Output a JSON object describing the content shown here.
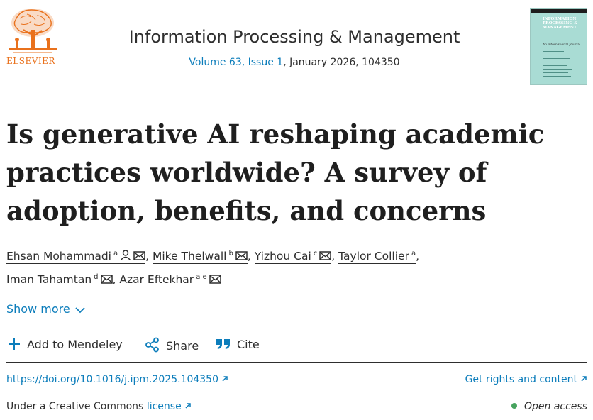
{
  "publisher": {
    "name": "ELSEVIER",
    "logo_icon": "elsevier-tree-logo"
  },
  "journal": {
    "title": "Information Processing & Management",
    "volume_issue": "Volume 63, Issue 1",
    "date_article": ", January 2026, 104350",
    "cover_title": "INFORMATION PROCESSING & MANAGEMENT",
    "cover_subtitle": "An International Journal"
  },
  "article": {
    "title": "Is generative AI reshaping academic practices worldwide? A survey of adoption, benefits, and concerns"
  },
  "authors": [
    {
      "name": "Ehsan Mohammadi",
      "aff": "a",
      "icons": [
        "person-icon",
        "mail-icon"
      ]
    },
    {
      "name": "Mike Thelwall",
      "aff": "b",
      "icons": [
        "mail-icon"
      ]
    },
    {
      "name": "Yizhou Cai",
      "aff": "c",
      "icons": [
        "mail-icon"
      ]
    },
    {
      "name": "Taylor Collier",
      "aff": "a",
      "icons": []
    },
    {
      "name": "Iman Tahamtan",
      "aff": "d",
      "icons": [
        "mail-icon"
      ]
    },
    {
      "name": "Azar Eftekhar",
      "aff": "a e",
      "icons": [
        "mail-icon"
      ]
    }
  ],
  "separator": ",",
  "show_more": "Show more",
  "actions": {
    "mendeley": "Add to Mendeley",
    "share": "Share",
    "cite": "Cite"
  },
  "links": {
    "doi": "https://doi.org/10.1016/j.ipm.2025.104350",
    "rights": "Get rights and content",
    "license_prefix": "Under a Creative Commons",
    "license_link": "license",
    "open_access": "Open access"
  },
  "colors": {
    "link": "#0c7dbb",
    "elsevier_orange": "#e9711c",
    "open_access_dot": "#46a35e",
    "cover": "#a9dcd4"
  }
}
